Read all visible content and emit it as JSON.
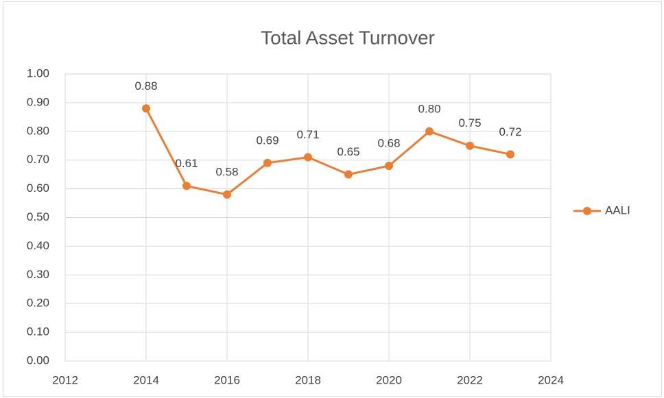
{
  "chart_data": {
    "type": "line",
    "title": "Total Asset Turnover",
    "x": [
      2014,
      2015,
      2016,
      2017,
      2018,
      2019,
      2020,
      2021,
      2022,
      2023
    ],
    "series": [
      {
        "name": "AALI",
        "color": "#ed7d31",
        "values": [
          0.88,
          0.61,
          0.58,
          0.69,
          0.71,
          0.65,
          0.68,
          0.8,
          0.75,
          0.72
        ],
        "value_labels": [
          "0.88",
          "0.61",
          "0.58",
          "0.69",
          "0.71",
          "0.65",
          "0.68",
          "0.80",
          "0.75",
          "0.72"
        ]
      }
    ],
    "xlim": [
      2012,
      2024
    ],
    "xticks": [
      2012,
      2014,
      2016,
      2018,
      2020,
      2022,
      2024
    ],
    "ylim": [
      0,
      1
    ],
    "yticks": [
      {
        "value": 0,
        "label": "0.00"
      },
      {
        "value": 0.1,
        "label": "0.10"
      },
      {
        "value": 0.2,
        "label": "0.20"
      },
      {
        "value": 0.3,
        "label": "0.30"
      },
      {
        "value": 0.4,
        "label": "0.40"
      },
      {
        "value": 0.5,
        "label": "0.50"
      },
      {
        "value": 0.6,
        "label": "0.60"
      },
      {
        "value": 0.7,
        "label": "0.70"
      },
      {
        "value": 0.8,
        "label": "0.80"
      },
      {
        "value": 0.9,
        "label": "0.90"
      },
      {
        "value": 1,
        "label": "1.00"
      }
    ],
    "grid": true,
    "legend": "right"
  }
}
